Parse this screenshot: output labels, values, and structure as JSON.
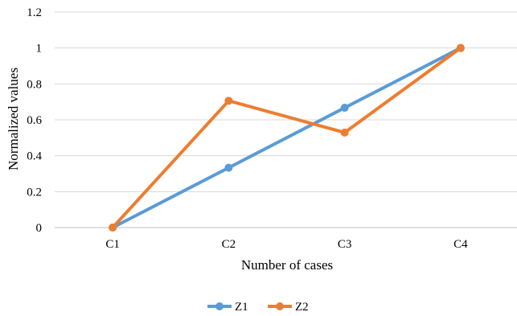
{
  "chart_data": {
    "type": "line",
    "title": "",
    "xlabel": "Number of cases",
    "ylabel": "Normalized values",
    "categories": [
      "C1",
      "C2",
      "C3",
      "C4"
    ],
    "ylim": [
      0,
      1.2
    ],
    "yticks": [
      0,
      0.2,
      0.4,
      0.6,
      0.8,
      1,
      1.2
    ],
    "ytick_labels": [
      "0",
      "0.2",
      "0.4",
      "0.6",
      "0.8",
      "1",
      "1.2"
    ],
    "grid": "horizontal",
    "legend_position": "bottom",
    "series": [
      {
        "name": "Z1",
        "color": "#5B9BD5",
        "values": [
          0,
          0.333,
          0.667,
          1
        ]
      },
      {
        "name": "Z2",
        "color": "#ED7D31",
        "values": [
          0,
          0.706,
          0.529,
          1
        ]
      }
    ]
  }
}
